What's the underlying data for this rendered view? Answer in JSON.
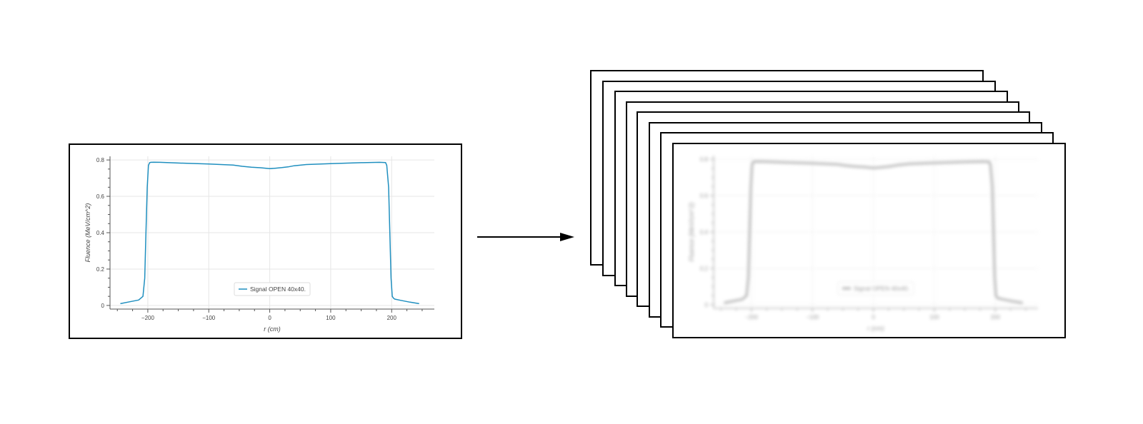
{
  "colors": {
    "signal_line": "#1f8fbf",
    "blurred_line": "#8a8a8a",
    "frame_border": "#000000",
    "grid": "#e6e6e6",
    "axis_text": "#444444"
  },
  "icons": {
    "arrow": "right-arrow-icon"
  },
  "stack": {
    "count": 8
  },
  "chart_data": [
    {
      "type": "line",
      "xlabel": "r (cm)",
      "ylabel": "Fluence (MeV/cm^2)",
      "xlim": [
        -262,
        270
      ],
      "ylim": [
        -0.02,
        0.82
      ],
      "xticks": [
        -200,
        -100,
        0,
        100,
        200
      ],
      "xtick_labels": [
        "−200",
        "−100",
        "0",
        "100",
        "200"
      ],
      "yticks": [
        0,
        0.2,
        0.4,
        0.6,
        0.8
      ],
      "ytick_labels": [
        "0",
        "0.2",
        "0.4",
        "0.6",
        "0.8"
      ],
      "grid": true,
      "legend_position": "bottom-center",
      "series": [
        {
          "name": "Signal OPEN 40x40.",
          "x": [
            -245,
            -230,
            -215,
            -208,
            -205,
            -203,
            -201,
            -199,
            -197,
            -195,
            -190,
            -180,
            -150,
            -100,
            -60,
            -45,
            -30,
            -15,
            0,
            10,
            20,
            30,
            40,
            60,
            100,
            150,
            180,
            190,
            192,
            195,
            197,
            199,
            201,
            203,
            205,
            215,
            230,
            245
          ],
          "y": [
            0.01,
            0.02,
            0.03,
            0.05,
            0.15,
            0.4,
            0.65,
            0.77,
            0.785,
            0.787,
            0.788,
            0.787,
            0.783,
            0.778,
            0.772,
            0.765,
            0.76,
            0.757,
            0.752,
            0.755,
            0.758,
            0.762,
            0.768,
            0.775,
            0.78,
            0.785,
            0.787,
            0.786,
            0.77,
            0.65,
            0.4,
            0.15,
            0.05,
            0.04,
            0.035,
            0.028,
            0.018,
            0.01
          ]
        }
      ]
    }
  ]
}
